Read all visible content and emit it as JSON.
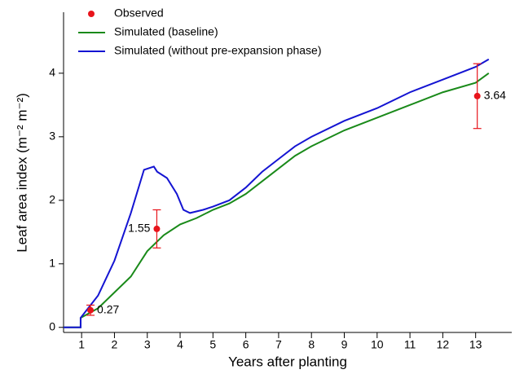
{
  "chart_data": {
    "type": "line",
    "xlabel": "Years after planting",
    "ylabel": "Leaf area index (m⁻² m⁻²)",
    "xlim": [
      0.45,
      14.1
    ],
    "xticks": [
      1,
      2,
      3,
      4,
      5,
      6,
      7,
      8,
      9,
      10,
      11,
      12,
      13
    ],
    "ylim": [
      -0.08,
      4.96
    ],
    "yticks": [
      0,
      1,
      2,
      3,
      4
    ],
    "grid": false,
    "legend": "top-left",
    "observed": {
      "name": "Observed",
      "color": "#e8141b",
      "x": [
        1.27,
        3.29,
        13.05
      ],
      "values": [
        0.27,
        1.55,
        3.64
      ],
      "error": [
        0.08,
        0.3,
        0.51
      ],
      "value_labels": [
        "0.27",
        "1.55",
        "3.64"
      ]
    },
    "series": [
      {
        "name": "Simulated (baseline)",
        "color": "#1a8a1a",
        "x": [
          0.45,
          0.97,
          0.97,
          1.5,
          2,
          2.5,
          3,
          3.5,
          4,
          4.5,
          5,
          5.5,
          6,
          6.5,
          7,
          7.5,
          8,
          9,
          10,
          11,
          12,
          13,
          13.4
        ],
        "values": [
          0,
          0,
          0.15,
          0.3,
          0.55,
          0.8,
          1.2,
          1.45,
          1.62,
          1.72,
          1.85,
          1.95,
          2.1,
          2.3,
          2.5,
          2.7,
          2.85,
          3.1,
          3.3,
          3.5,
          3.7,
          3.85,
          4.0
        ]
      },
      {
        "name": "Simulated (without pre-expansion phase)",
        "color": "#1414d2",
        "x": [
          0.45,
          0.97,
          0.97,
          1.5,
          2,
          2.5,
          2.9,
          3.2,
          3.3,
          3.6,
          3.9,
          4.1,
          4.3,
          4.7,
          5,
          5.5,
          6,
          6.5,
          7,
          7.5,
          8,
          9,
          10,
          11,
          12,
          13,
          13.4
        ],
        "values": [
          0,
          0,
          0.15,
          0.5,
          1.05,
          1.8,
          2.48,
          2.53,
          2.45,
          2.35,
          2.1,
          1.85,
          1.8,
          1.85,
          1.9,
          2.0,
          2.2,
          2.45,
          2.65,
          2.85,
          3.0,
          3.25,
          3.45,
          3.7,
          3.9,
          4.1,
          4.22
        ]
      }
    ]
  }
}
